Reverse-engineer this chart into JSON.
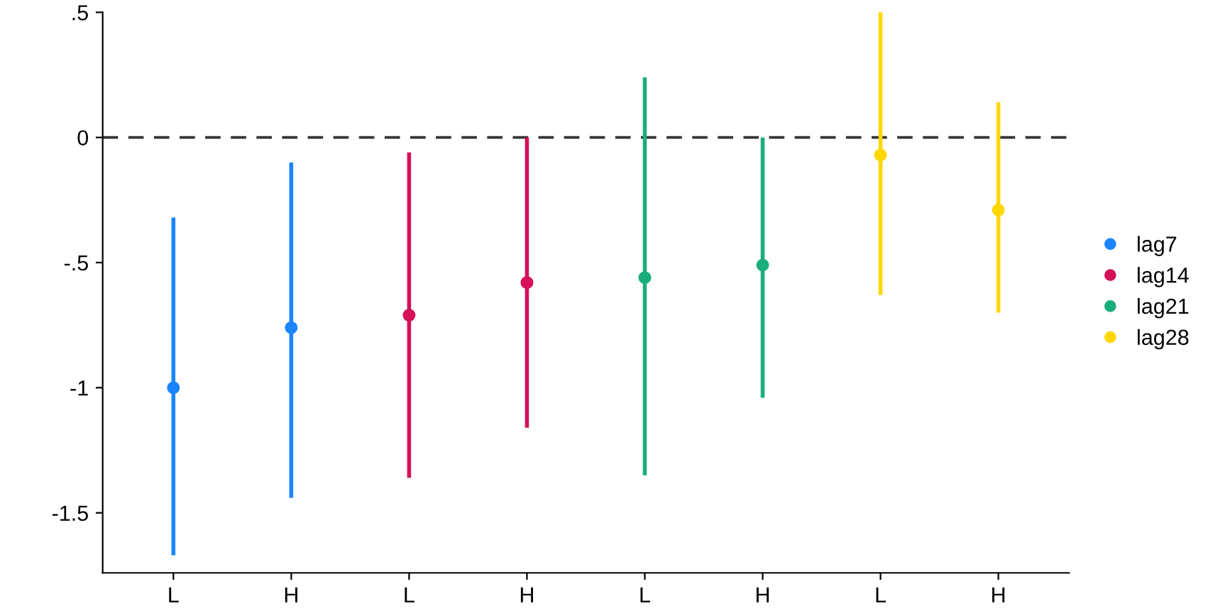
{
  "chart_data": {
    "type": "scatter",
    "categories": [
      "L",
      "H",
      "L",
      "H",
      "L",
      "H",
      "L",
      "H"
    ],
    "series": [
      {
        "name": "lag7",
        "color": "#1a85ff",
        "values": [
          -1.0,
          -0.76,
          null,
          null,
          null,
          null,
          null,
          null
        ],
        "errors": [
          [
            -1.67,
            -0.32
          ],
          [
            -1.44,
            -0.1
          ],
          null,
          null,
          null,
          null,
          null,
          null
        ]
      },
      {
        "name": "lag14",
        "color": "#d41159",
        "values": [
          null,
          null,
          -0.71,
          -0.58,
          null,
          null,
          null,
          null
        ],
        "errors": [
          null,
          null,
          [
            -1.36,
            -0.06
          ],
          [
            -1.16,
            0.0
          ],
          null,
          null,
          null,
          null
        ]
      },
      {
        "name": "lag21",
        "color": "#1aae7a",
        "values": [
          null,
          null,
          null,
          null,
          -0.56,
          -0.51,
          null,
          null
        ],
        "errors": [
          null,
          null,
          null,
          null,
          [
            -1.35,
            0.24
          ],
          [
            -1.04,
            0.0
          ],
          null,
          null
        ]
      },
      {
        "name": "lag28",
        "color": "#ffd700",
        "values": [
          null,
          null,
          null,
          null,
          null,
          null,
          -0.07,
          -0.29
        ],
        "errors": [
          null,
          null,
          null,
          null,
          null,
          null,
          [
            -0.63,
            0.5
          ],
          [
            -0.7,
            0.14
          ]
        ]
      }
    ],
    "ylim": [
      -1.74,
      0.5
    ],
    "yticks": [
      {
        "value": -1.5,
        "label": "-1.5"
      },
      {
        "value": -1,
        "label": "-1"
      },
      {
        "value": -0.5,
        "label": "-.5"
      },
      0,
      {
        "value": 0.5,
        "label": ".5"
      }
    ],
    "ref_lines": [
      {
        "axis": "y",
        "value": 0,
        "color": "#333333",
        "line_style": "dashed"
      }
    ],
    "marker": "circle",
    "legend": "right",
    "grid": false
  }
}
